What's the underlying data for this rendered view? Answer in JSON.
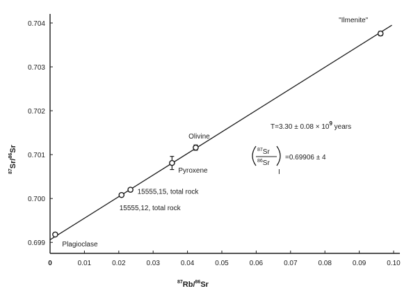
{
  "chart_data": {
    "type": "scatter",
    "xlabel": {
      "pre": "87",
      "a": "Rb/",
      "mid": "86",
      "b": "Sr"
    },
    "ylabel": {
      "pre": "87",
      "a": "Sr/",
      "mid": "86",
      "b": "Sr"
    },
    "xlim": [
      0,
      0.1
    ],
    "ylim": [
      0.69875,
      0.704
    ],
    "xticks": [
      {
        "v": 0,
        "label": "0"
      },
      {
        "v": 0.01,
        "label": "0.01"
      },
      {
        "v": 0.02,
        "label": "0.02"
      },
      {
        "v": 0.03,
        "label": "0.03"
      },
      {
        "v": 0.04,
        "label": "0.04"
      },
      {
        "v": 0.05,
        "label": "0.05"
      },
      {
        "v": 0.06,
        "label": "0.06"
      },
      {
        "v": 0.07,
        "label": "0.07"
      },
      {
        "v": 0.08,
        "label": "0.08"
      },
      {
        "v": 0.09,
        "label": "0.09"
      },
      {
        "v": 0.1,
        "label": "0.10"
      }
    ],
    "yticks": [
      {
        "v": 0.699,
        "label": "0.699"
      },
      {
        "v": 0.7,
        "label": "0.700"
      },
      {
        "v": 0.701,
        "label": "0.701"
      },
      {
        "v": 0.702,
        "label": "0.702"
      },
      {
        "v": 0.703,
        "label": "0.703"
      },
      {
        "v": 0.704,
        "label": "0.704"
      }
    ],
    "points": [
      {
        "x": 0.0015,
        "y": 0.69918,
        "err": 4e-05,
        "label": "Plagioclase"
      },
      {
        "x": 0.0208,
        "y": 0.70008,
        "err": 4e-05,
        "label": "15555,12, total rock"
      },
      {
        "x": 0.0234,
        "y": 0.7002,
        "err": 4e-05,
        "label": "15555,15, total rock"
      },
      {
        "x": 0.0355,
        "y": 0.70081,
        "err": 0.00015,
        "label": "Pyroxene"
      },
      {
        "x": 0.0424,
        "y": 0.70116,
        "err": 6e-05,
        "label": "Olivine"
      },
      {
        "x": 0.0962,
        "y": 0.70376,
        "err": 5e-05,
        "label": "\"Ilmenite\""
      }
    ],
    "fit_line": {
      "x0": 0,
      "y0": 0.69906,
      "x1": 0.0995,
      "y1": 0.70395
    },
    "annotations": {
      "age": "T=3.30 ± 0.08 × 10",
      "age_exp": "9",
      "age_unit": " years",
      "initial_num_pre": "87",
      "initial_num": "Sr",
      "initial_den_pre": "86",
      "initial_den": "Sr",
      "initial_value": "=0.69906 ± 4",
      "initial_sub": "I"
    }
  }
}
